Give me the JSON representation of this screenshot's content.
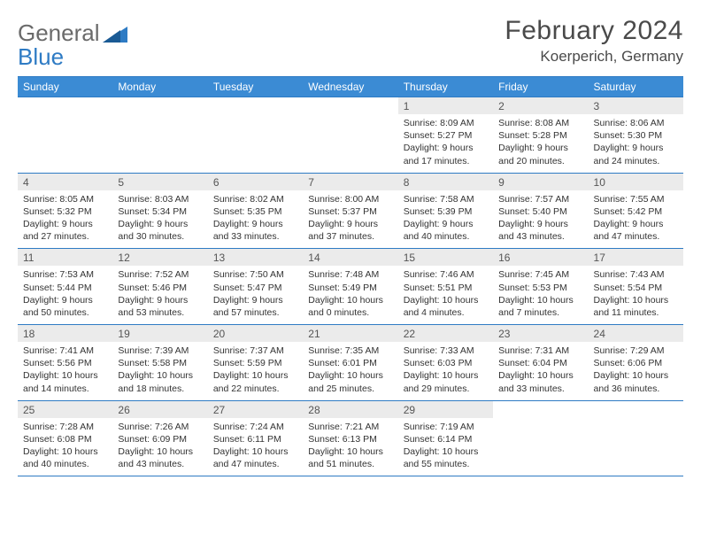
{
  "logo": {
    "text1": "General",
    "text2": "Blue"
  },
  "title": "February 2024",
  "location": "Koerperich, Germany",
  "colors": {
    "header_bg": "#3b8bd4",
    "border": "#2e7bc4",
    "daynum_bg": "#ebebeb",
    "text": "#333333"
  },
  "day_headers": [
    "Sunday",
    "Monday",
    "Tuesday",
    "Wednesday",
    "Thursday",
    "Friday",
    "Saturday"
  ],
  "weeks": [
    [
      {
        "n": "",
        "s": "",
        "ss": "",
        "d": ""
      },
      {
        "n": "",
        "s": "",
        "ss": "",
        "d": ""
      },
      {
        "n": "",
        "s": "",
        "ss": "",
        "d": ""
      },
      {
        "n": "",
        "s": "",
        "ss": "",
        "d": ""
      },
      {
        "n": "1",
        "s": "Sunrise: 8:09 AM",
        "ss": "Sunset: 5:27 PM",
        "d": "Daylight: 9 hours and 17 minutes."
      },
      {
        "n": "2",
        "s": "Sunrise: 8:08 AM",
        "ss": "Sunset: 5:28 PM",
        "d": "Daylight: 9 hours and 20 minutes."
      },
      {
        "n": "3",
        "s": "Sunrise: 8:06 AM",
        "ss": "Sunset: 5:30 PM",
        "d": "Daylight: 9 hours and 24 minutes."
      }
    ],
    [
      {
        "n": "4",
        "s": "Sunrise: 8:05 AM",
        "ss": "Sunset: 5:32 PM",
        "d": "Daylight: 9 hours and 27 minutes."
      },
      {
        "n": "5",
        "s": "Sunrise: 8:03 AM",
        "ss": "Sunset: 5:34 PM",
        "d": "Daylight: 9 hours and 30 minutes."
      },
      {
        "n": "6",
        "s": "Sunrise: 8:02 AM",
        "ss": "Sunset: 5:35 PM",
        "d": "Daylight: 9 hours and 33 minutes."
      },
      {
        "n": "7",
        "s": "Sunrise: 8:00 AM",
        "ss": "Sunset: 5:37 PM",
        "d": "Daylight: 9 hours and 37 minutes."
      },
      {
        "n": "8",
        "s": "Sunrise: 7:58 AM",
        "ss": "Sunset: 5:39 PM",
        "d": "Daylight: 9 hours and 40 minutes."
      },
      {
        "n": "9",
        "s": "Sunrise: 7:57 AM",
        "ss": "Sunset: 5:40 PM",
        "d": "Daylight: 9 hours and 43 minutes."
      },
      {
        "n": "10",
        "s": "Sunrise: 7:55 AM",
        "ss": "Sunset: 5:42 PM",
        "d": "Daylight: 9 hours and 47 minutes."
      }
    ],
    [
      {
        "n": "11",
        "s": "Sunrise: 7:53 AM",
        "ss": "Sunset: 5:44 PM",
        "d": "Daylight: 9 hours and 50 minutes."
      },
      {
        "n": "12",
        "s": "Sunrise: 7:52 AM",
        "ss": "Sunset: 5:46 PM",
        "d": "Daylight: 9 hours and 53 minutes."
      },
      {
        "n": "13",
        "s": "Sunrise: 7:50 AM",
        "ss": "Sunset: 5:47 PM",
        "d": "Daylight: 9 hours and 57 minutes."
      },
      {
        "n": "14",
        "s": "Sunrise: 7:48 AM",
        "ss": "Sunset: 5:49 PM",
        "d": "Daylight: 10 hours and 0 minutes."
      },
      {
        "n": "15",
        "s": "Sunrise: 7:46 AM",
        "ss": "Sunset: 5:51 PM",
        "d": "Daylight: 10 hours and 4 minutes."
      },
      {
        "n": "16",
        "s": "Sunrise: 7:45 AM",
        "ss": "Sunset: 5:53 PM",
        "d": "Daylight: 10 hours and 7 minutes."
      },
      {
        "n": "17",
        "s": "Sunrise: 7:43 AM",
        "ss": "Sunset: 5:54 PM",
        "d": "Daylight: 10 hours and 11 minutes."
      }
    ],
    [
      {
        "n": "18",
        "s": "Sunrise: 7:41 AM",
        "ss": "Sunset: 5:56 PM",
        "d": "Daylight: 10 hours and 14 minutes."
      },
      {
        "n": "19",
        "s": "Sunrise: 7:39 AM",
        "ss": "Sunset: 5:58 PM",
        "d": "Daylight: 10 hours and 18 minutes."
      },
      {
        "n": "20",
        "s": "Sunrise: 7:37 AM",
        "ss": "Sunset: 5:59 PM",
        "d": "Daylight: 10 hours and 22 minutes."
      },
      {
        "n": "21",
        "s": "Sunrise: 7:35 AM",
        "ss": "Sunset: 6:01 PM",
        "d": "Daylight: 10 hours and 25 minutes."
      },
      {
        "n": "22",
        "s": "Sunrise: 7:33 AM",
        "ss": "Sunset: 6:03 PM",
        "d": "Daylight: 10 hours and 29 minutes."
      },
      {
        "n": "23",
        "s": "Sunrise: 7:31 AM",
        "ss": "Sunset: 6:04 PM",
        "d": "Daylight: 10 hours and 33 minutes."
      },
      {
        "n": "24",
        "s": "Sunrise: 7:29 AM",
        "ss": "Sunset: 6:06 PM",
        "d": "Daylight: 10 hours and 36 minutes."
      }
    ],
    [
      {
        "n": "25",
        "s": "Sunrise: 7:28 AM",
        "ss": "Sunset: 6:08 PM",
        "d": "Daylight: 10 hours and 40 minutes."
      },
      {
        "n": "26",
        "s": "Sunrise: 7:26 AM",
        "ss": "Sunset: 6:09 PM",
        "d": "Daylight: 10 hours and 43 minutes."
      },
      {
        "n": "27",
        "s": "Sunrise: 7:24 AM",
        "ss": "Sunset: 6:11 PM",
        "d": "Daylight: 10 hours and 47 minutes."
      },
      {
        "n": "28",
        "s": "Sunrise: 7:21 AM",
        "ss": "Sunset: 6:13 PM",
        "d": "Daylight: 10 hours and 51 minutes."
      },
      {
        "n": "29",
        "s": "Sunrise: 7:19 AM",
        "ss": "Sunset: 6:14 PM",
        "d": "Daylight: 10 hours and 55 minutes."
      },
      {
        "n": "",
        "s": "",
        "ss": "",
        "d": ""
      },
      {
        "n": "",
        "s": "",
        "ss": "",
        "d": ""
      }
    ]
  ]
}
